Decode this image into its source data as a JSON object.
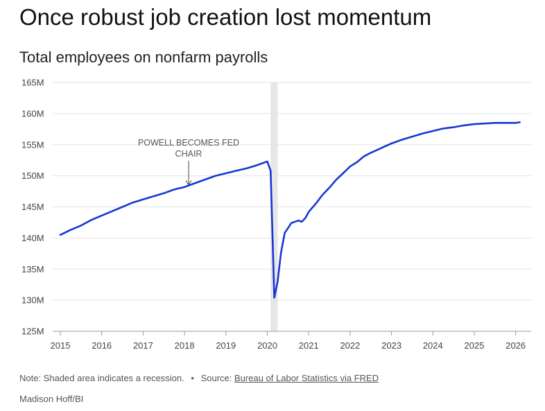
{
  "header": {
    "title": "Once robust job creation lost momentum",
    "subtitle": "Total employees on nonfarm payrolls"
  },
  "footer": {
    "note": "Note: Shaded area indicates a recession.",
    "separator": "•",
    "source_prefix": "Source:",
    "source_link": "Bureau of Labor Statistics via FRED",
    "byline": "Madison Hoff/BI"
  },
  "colors": {
    "line": "#1636d6",
    "recession": "#e6e6e6",
    "grid": "#e3e3e3"
  },
  "chart_data": {
    "type": "line",
    "title": "Total employees on nonfarm payrolls",
    "xlabel": "",
    "ylabel": "",
    "xlim": [
      2015,
      2026.4
    ],
    "ylim": [
      125,
      165
    ],
    "grid": true,
    "y_ticks": [
      125,
      130,
      135,
      140,
      145,
      150,
      155,
      160,
      165
    ],
    "y_tick_labels": [
      "125M",
      "130M",
      "135M",
      "140M",
      "145M",
      "150M",
      "155M",
      "160M",
      "165M"
    ],
    "x_ticks": [
      2015,
      2016,
      2017,
      2018,
      2019,
      2020,
      2021,
      2022,
      2023,
      2024,
      2025,
      2026
    ],
    "x_tick_labels": [
      "2015",
      "2016",
      "2017",
      "2018",
      "2019",
      "2020",
      "2021",
      "2022",
      "2023",
      "2024",
      "2025",
      "2026"
    ],
    "recession": {
      "start": 2020.08,
      "end": 2020.25
    },
    "annotations": [
      {
        "lines": [
          "POWELL BECOMES FED",
          "CHAIR"
        ],
        "x": 2018.1,
        "y": 148.0
      }
    ],
    "series": [
      {
        "x": [
          2015.0,
          2015.25,
          2015.5,
          2015.75,
          2016.0,
          2016.25,
          2016.5,
          2016.75,
          2017.0,
          2017.25,
          2017.5,
          2017.75,
          2018.0,
          2018.25,
          2018.5,
          2018.75,
          2019.0,
          2019.25,
          2019.5,
          2019.75,
          2020.0,
          2020.08,
          2020.17,
          2020.25,
          2020.33,
          2020.42,
          2020.58,
          2020.75,
          2020.83,
          2020.92,
          2021.0,
          2021.17,
          2021.33,
          2021.5,
          2021.67,
          2021.83,
          2022.0,
          2022.17,
          2022.33,
          2022.5,
          2022.67,
          2022.83,
          2023.0,
          2023.25,
          2023.5,
          2023.75,
          2024.0,
          2024.25,
          2024.5,
          2024.75,
          2025.0,
          2025.25,
          2025.5,
          2025.75,
          2026.0,
          2026.1
        ],
        "values": [
          140.5,
          141.3,
          142.0,
          142.9,
          143.6,
          144.3,
          145.0,
          145.7,
          146.2,
          146.7,
          147.2,
          147.8,
          148.2,
          148.8,
          149.4,
          150.0,
          150.4,
          150.8,
          151.2,
          151.7,
          152.3,
          150.8,
          130.4,
          133.0,
          137.6,
          140.8,
          142.4,
          142.8,
          142.6,
          143.2,
          144.2,
          145.5,
          146.9,
          148.1,
          149.4,
          150.4,
          151.5,
          152.2,
          153.1,
          153.7,
          154.2,
          154.7,
          155.2,
          155.8,
          156.3,
          156.8,
          157.2,
          157.6,
          157.8,
          158.1,
          158.3,
          158.4,
          158.5,
          158.5,
          158.5,
          158.6
        ]
      }
    ]
  }
}
